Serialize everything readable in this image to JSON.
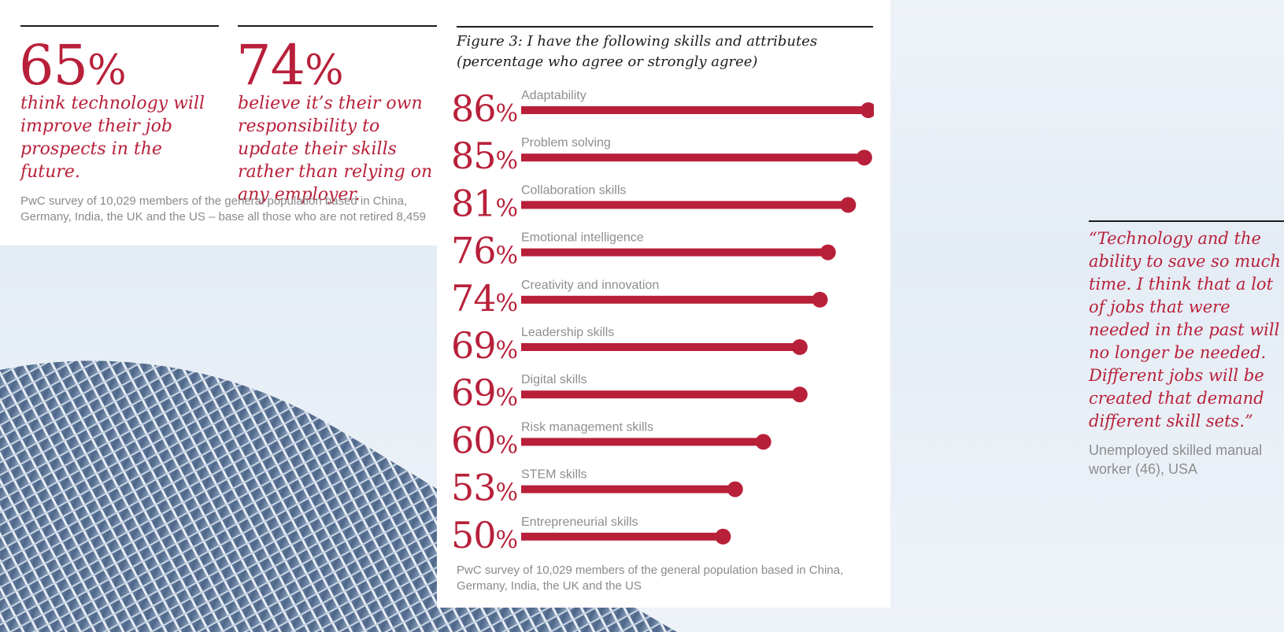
{
  "stats": [
    {
      "value": "65",
      "unit": "%",
      "text": "think technology will improve their job prospects in the future."
    },
    {
      "value": "74",
      "unit": "%",
      "text": "believe it’s their own responsibility to update their skills rather than relying on any employer."
    }
  ],
  "stats_source": "PwC survey of 10,029 members of the general population based in China, Germany, India, the UK and the US – base all those who are not retired 8,459",
  "chart_data": {
    "type": "bar",
    "title": "Figure 3: I have the following skills and attributes (percentage who agree or strongly agree)",
    "categories": [
      "Adaptability",
      "Problem solving",
      "Collaboration skills",
      "Emotional intelligence",
      "Creativity and innovation",
      "Leadership skills",
      "Digital skills",
      "Risk management skills",
      "STEM skills",
      "Entrepreneurial skills"
    ],
    "values": [
      86,
      85,
      81,
      76,
      74,
      69,
      69,
      60,
      53,
      50
    ],
    "value_labels": [
      "86",
      "85",
      "81",
      "76",
      "74",
      "69",
      "69",
      "60",
      "53",
      "50"
    ],
    "unit": "%",
    "orientation": "horizontal",
    "xlim": [
      0,
      86
    ],
    "grid": false,
    "colors": {
      "bar": "#b8203a",
      "label": "#8e8e8e"
    }
  },
  "chart_source": "PwC survey of 10,029 members of the general population based in China, Germany, India, the UK and the US",
  "quote": {
    "text": "“Technology and the ability to save so much time. I think that a lot of jobs that were needed in the past will no longer be needed. Different jobs will be created that demand different skill sets.”",
    "attribution": "Unemployed skilled manual worker (46), USA"
  },
  "colors": {
    "accent": "#b8203a",
    "rule": "#1c1c1c",
    "muted": "#8a8a8a"
  }
}
